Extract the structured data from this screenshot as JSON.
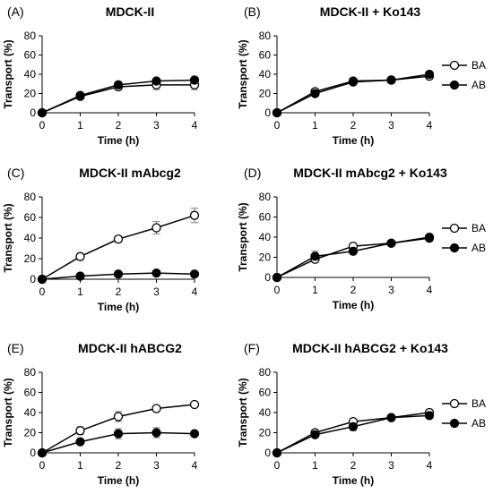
{
  "chart_data": [
    {
      "panel_label": "(A)",
      "title": "MDCK-II",
      "type": "line",
      "x": [
        0,
        1,
        2,
        3,
        4
      ],
      "xlim": [
        0,
        4
      ],
      "ylim": [
        0,
        80
      ],
      "xticks": [
        "0",
        "1",
        "2",
        "3",
        "4"
      ],
      "yticks": [
        "0",
        "20",
        "40",
        "60",
        "80"
      ],
      "xlabel": "Time (h)",
      "ylabel": "Transport (%)",
      "series": [
        {
          "name": "BA",
          "marker": "open-circle",
          "values": [
            0,
            17,
            27,
            29,
            29
          ],
          "errors": [
            0,
            2,
            3,
            5,
            5
          ]
        },
        {
          "name": "AB",
          "marker": "filled-circle",
          "values": [
            0,
            18,
            29,
            33,
            34
          ],
          "errors": [
            0,
            2,
            2,
            2,
            2
          ]
        }
      ]
    },
    {
      "panel_label": "(B)",
      "title": "MDCK-II + Ko143",
      "type": "line",
      "x": [
        0,
        1,
        2,
        3,
        4
      ],
      "xlim": [
        0,
        4
      ],
      "ylim": [
        0,
        80
      ],
      "xticks": [
        "0",
        "1",
        "2",
        "3",
        "4"
      ],
      "yticks": [
        "0",
        "20",
        "40",
        "60",
        "80"
      ],
      "xlabel": "Time (h)",
      "ylabel": "Transport (%)",
      "series": [
        {
          "name": "BA",
          "marker": "open-circle",
          "values": [
            0,
            22,
            33,
            34,
            38
          ],
          "errors": [
            0,
            3,
            3,
            2,
            2
          ]
        },
        {
          "name": "AB",
          "marker": "filled-circle",
          "values": [
            0,
            20,
            32,
            34,
            40
          ],
          "errors": [
            0,
            3,
            3,
            2,
            2
          ]
        }
      ]
    },
    {
      "panel_label": "(C)",
      "title": "MDCK-II mAbcg2",
      "type": "line",
      "x": [
        0,
        1,
        2,
        3,
        4
      ],
      "xlim": [
        0,
        4
      ],
      "ylim": [
        0,
        80
      ],
      "xticks": [
        "0",
        "1",
        "2",
        "3",
        "4"
      ],
      "yticks": [
        "0",
        "20",
        "40",
        "60",
        "80"
      ],
      "xlabel": "Time (h)",
      "ylabel": "Transport (%)",
      "series": [
        {
          "name": "BA",
          "marker": "open-circle",
          "values": [
            0,
            22,
            39,
            50,
            62
          ],
          "errors": [
            0,
            2,
            3,
            6,
            7
          ]
        },
        {
          "name": "AB",
          "marker": "filled-circle",
          "values": [
            0,
            3,
            5,
            6,
            5
          ],
          "errors": [
            0,
            1,
            1,
            1,
            1
          ]
        }
      ]
    },
    {
      "panel_label": "(D)",
      "title": "MDCK-II mAbcg2 + Ko143",
      "type": "line",
      "x": [
        0,
        1,
        2,
        3,
        4
      ],
      "xlim": [
        0,
        4
      ],
      "ylim": [
        0,
        80
      ],
      "xticks": [
        "0",
        "1",
        "2",
        "3",
        "4"
      ],
      "yticks": [
        "0",
        "20",
        "40",
        "60",
        "80"
      ],
      "xlabel": "Time (h)",
      "ylabel": "Transport (%)",
      "series": [
        {
          "name": "BA",
          "marker": "open-circle",
          "values": [
            0,
            18,
            31,
            34,
            40
          ],
          "errors": [
            0,
            3,
            3,
            2,
            2
          ]
        },
        {
          "name": "AB",
          "marker": "filled-circle",
          "values": [
            0,
            21,
            26,
            34,
            39
          ],
          "errors": [
            0,
            5,
            3,
            2,
            2
          ]
        }
      ]
    },
    {
      "panel_label": "(E)",
      "title": "MDCK-II hABCG2",
      "type": "line",
      "x": [
        0,
        1,
        2,
        3,
        4
      ],
      "xlim": [
        0,
        4
      ],
      "ylim": [
        0,
        80
      ],
      "xticks": [
        "0",
        "1",
        "2",
        "3",
        "4"
      ],
      "yticks": [
        "0",
        "20",
        "40",
        "60",
        "80"
      ],
      "xlabel": "Time (h)",
      "ylabel": "Transport (%)",
      "series": [
        {
          "name": "BA",
          "marker": "open-circle",
          "values": [
            0,
            22,
            36,
            44,
            48
          ],
          "errors": [
            0,
            4,
            5,
            3,
            2
          ]
        },
        {
          "name": "AB",
          "marker": "filled-circle",
          "values": [
            0,
            11,
            19,
            20,
            19
          ],
          "errors": [
            0,
            2,
            5,
            5,
            2
          ]
        }
      ]
    },
    {
      "panel_label": "(F)",
      "title": "MDCK-II hABCG2 + Ko143",
      "type": "line",
      "x": [
        0,
        1,
        2,
        3,
        4
      ],
      "xlim": [
        0,
        4
      ],
      "ylim": [
        0,
        80
      ],
      "xticks": [
        "0",
        "1",
        "2",
        "3",
        "4"
      ],
      "yticks": [
        "0",
        "20",
        "40",
        "60",
        "80"
      ],
      "xlabel": "Time (h)",
      "ylabel": "Transport (%)",
      "series": [
        {
          "name": "BA",
          "marker": "open-circle",
          "values": [
            0,
            20,
            31,
            35,
            40
          ],
          "errors": [
            0,
            2,
            2,
            2,
            2
          ]
        },
        {
          "name": "AB",
          "marker": "filled-circle",
          "values": [
            0,
            18,
            26,
            35,
            37
          ],
          "errors": [
            0,
            2,
            4,
            2,
            2
          ]
        }
      ]
    }
  ],
  "legends": [
    {
      "panel_index": 1,
      "items": [
        "BA",
        "AB"
      ]
    },
    {
      "panel_index": 3,
      "items": [
        "BA",
        "AB"
      ]
    },
    {
      "panel_index": 5,
      "items": [
        "BA",
        "AB"
      ]
    }
  ],
  "colors": {
    "line": "#000000",
    "open_fill": "#ffffff",
    "filled": "#000000",
    "error_bar": "#7f7f7f"
  }
}
